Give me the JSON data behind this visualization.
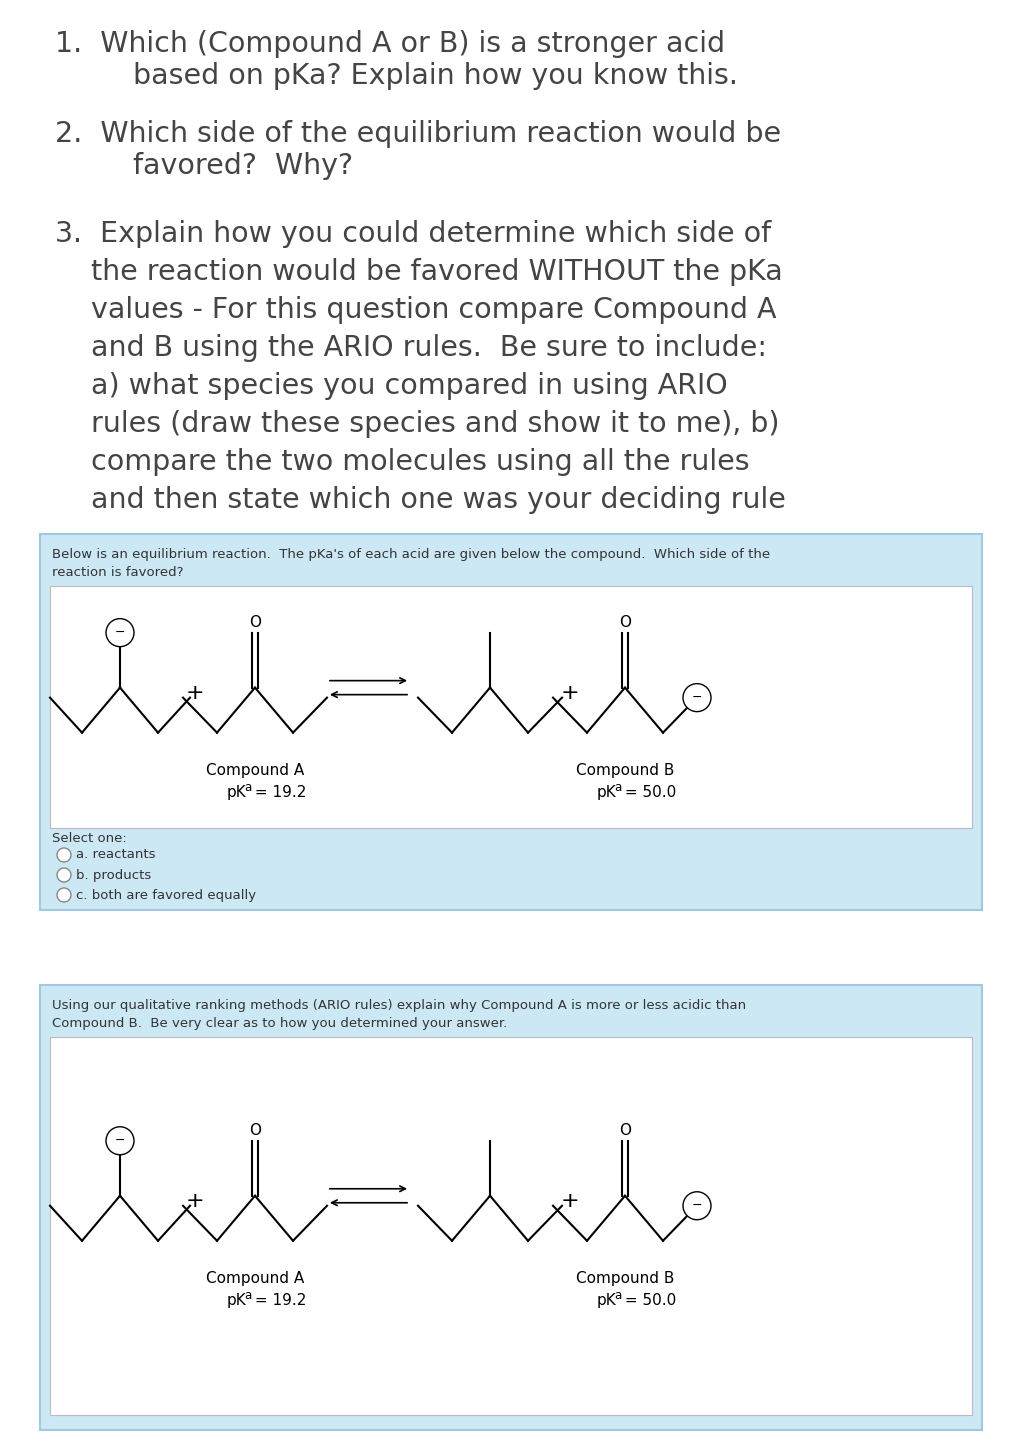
{
  "bg_color": "#ffffff",
  "light_blue_bg": "#cce8f4",
  "box_bg": "#ffffff",
  "border_color": "#a0c8e0",
  "text_color": "#444444",
  "q1_l1": "1.  Which (Compound A or B) is a stronger acid",
  "q1_l2": "    based on pKa? Explain how you know this.",
  "q2_l1": "2.  Which side of the equilibrium reaction would be",
  "q2_l2": "    favored?  Why?",
  "q3_lines": [
    "3.  Explain how you could determine which side of",
    "    the reaction would be favored WITHOUT the pKa",
    "    values - For this question compare Compound A",
    "    and B using the ARIO rules.  Be sure to include:",
    "    a) what species you compared in using ARIO",
    "    rules (draw these species and show it to me), b)",
    "    compare the two molecules using all the rules",
    "    and then state which one was your deciding rule"
  ],
  "box1_desc1": "Below is an equilibrium reaction.  The pKa's of each acid are given below the compound.  Which side of the",
  "box1_desc2": "reaction is favored?",
  "select_label": "Select one:",
  "radio_opts": [
    "a. reactants",
    "b. products",
    "c. both are favored equally"
  ],
  "box2_desc1": "Using our qualitative ranking methods (ARIO rules) explain why Compound A is more or less acidic than",
  "box2_desc2": "Compound B.  Be very clear as to how you determined your answer.",
  "compound_a_label": "Compound A",
  "compound_a_pka1": "pK",
  "compound_a_pka2": "a",
  "compound_a_pka3": " = 19.2",
  "compound_b_label": "Compound B",
  "compound_b_pka1": "pK",
  "compound_b_pka2": "a",
  "compound_b_pka3": " = 50.0"
}
